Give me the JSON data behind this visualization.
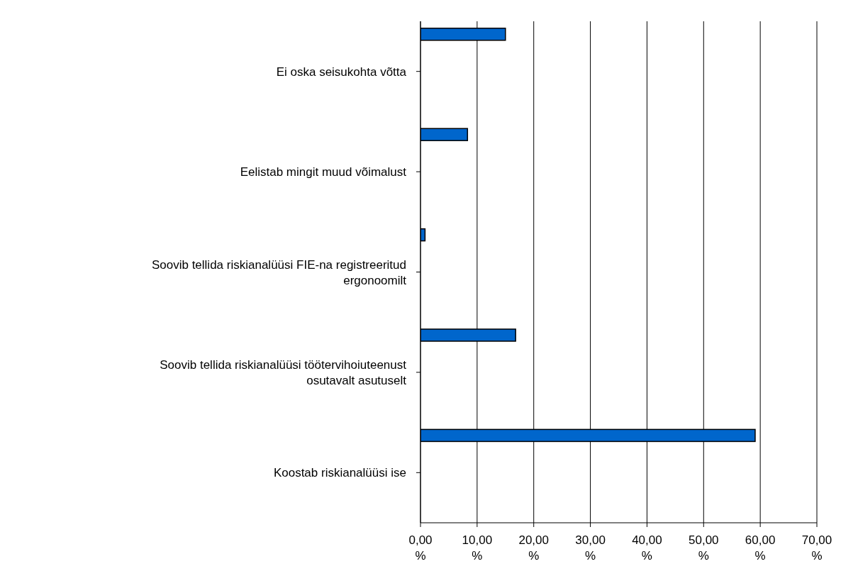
{
  "chart_data": {
    "type": "bar",
    "orientation": "horizontal",
    "categories": [
      "Ei oska seisukohta võtta",
      "Eelistab mingit muud võimalust",
      "Soovib tellida riskianalüüsi FIE-na registreeritud ergonoomilt",
      "Soovib tellida riskianalüüsi töötervihoiuteenust osutavalt asutuselt",
      "Koostab riskianalüüsi ise"
    ],
    "values": [
      15.0,
      8.3,
      0.8,
      16.8,
      59.1
    ],
    "color": "#0066cc",
    "xlim": [
      0,
      70
    ],
    "xticks": [
      {
        "value": 0,
        "label": "0,00 %"
      },
      {
        "value": 10,
        "label": "10,00 %"
      },
      {
        "value": 20,
        "label": "20,00 %"
      },
      {
        "value": 30,
        "label": "30,00 %"
      },
      {
        "value": 40,
        "label": "40,00 %"
      },
      {
        "value": 50,
        "label": "50,00 %"
      },
      {
        "value": 60,
        "label": "60,00 %"
      },
      {
        "value": 70,
        "label": "70,00 %"
      }
    ],
    "grid": "x",
    "legend": false
  }
}
